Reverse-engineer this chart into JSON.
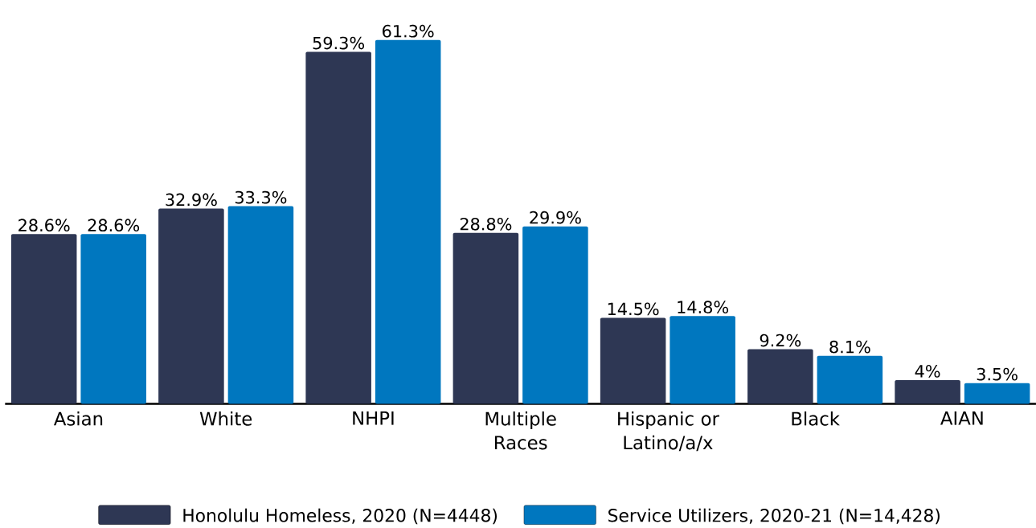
{
  "chart_data": {
    "type": "bar",
    "categories": [
      "Asian",
      "White",
      "NHPI",
      "Multiple Races",
      "Hispanic or Latino/a/x",
      "Black",
      "AIAN"
    ],
    "series": [
      {
        "name": "Honolulu Homeless, 2020 (N=4448)",
        "color": "#2e3754",
        "values": [
          28.6,
          32.9,
          59.3,
          28.8,
          14.5,
          9.2,
          4
        ],
        "value_labels": [
          "28.6%",
          "32.9%",
          "59.3%",
          "28.8%",
          "14.5%",
          "9.2%",
          "4%"
        ]
      },
      {
        "name": "Service Utilizers, 2020-21 (N=14,428)",
        "color": "#0077bf",
        "values": [
          28.6,
          33.3,
          61.3,
          29.9,
          14.8,
          8.1,
          3.5
        ],
        "value_labels": [
          "28.6%",
          "33.3%",
          "61.3%",
          "29.9%",
          "14.8%",
          "8.1%",
          "3.5%"
        ]
      }
    ],
    "legend": "bottom"
  }
}
